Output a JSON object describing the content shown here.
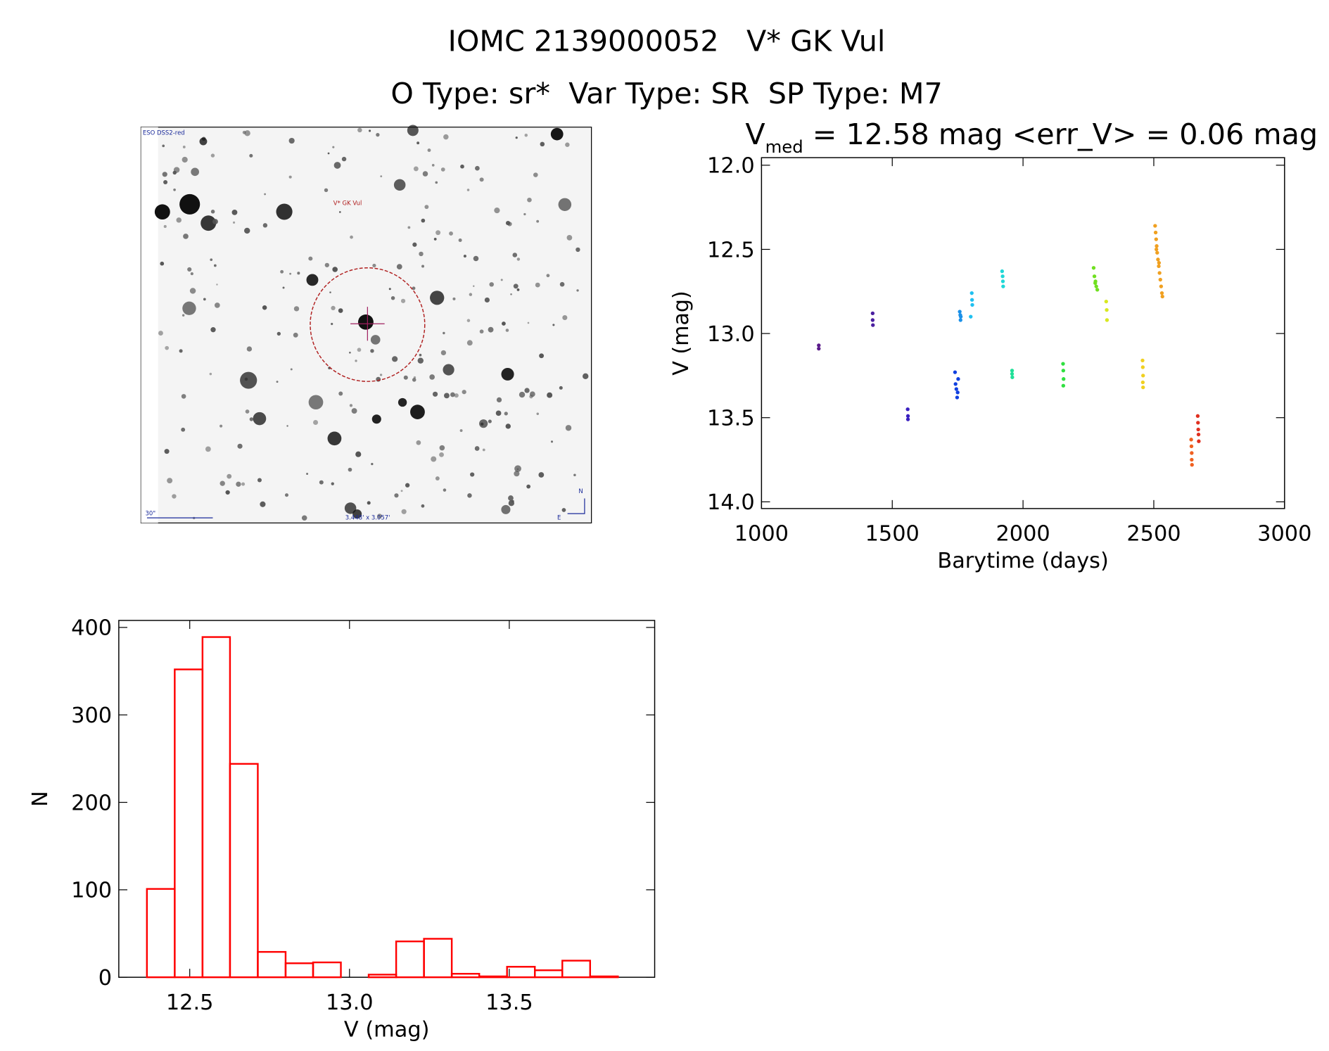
{
  "title": "IOMC 2139000052   V* GK Vul",
  "subtitle": "O Type: sr*  Var Type: SR  SP Type: M7",
  "image": {
    "survey": "ESO DSS2-red",
    "target": "V* GK Vul",
    "scale": "30\"",
    "field": "3.448' x 3.057'",
    "north": "N",
    "east": "E"
  },
  "chart_data": [
    {
      "type": "scatter",
      "title": "V",
      "title_sub": "med",
      "title_rest": " = 12.58 mag <err_V> = 0.06 mag",
      "x_label": "Barytime (days)",
      "y_label": "V (mag)",
      "xlim": [
        1000,
        3000
      ],
      "xticks": [
        1000,
        1500,
        2000,
        2500,
        3000
      ],
      "ylim": [
        11.955,
        14.04
      ],
      "y_inverted": true,
      "yticks": [
        {
          "value": 12.0,
          "label": "12.0"
        },
        12.5,
        {
          "value": 13.0,
          "label": "13.0"
        },
        13.5,
        {
          "value": 14.0,
          "label": "14.0"
        }
      ],
      "series": [
        {
          "color": "#5a1a8a",
          "x": [
            1219,
            1219
          ],
          "values": [
            13.07,
            13.09
          ]
        },
        {
          "color": "#4b1fa0",
          "x": [
            1425,
            1425,
            1426
          ],
          "values": [
            12.88,
            12.92,
            12.95
          ]
        },
        {
          "color": "#3a20c0",
          "x": [
            1559,
            1560,
            1560
          ],
          "values": [
            13.45,
            13.49,
            13.51
          ]
        },
        {
          "color": "#1040e0",
          "x": [
            1740,
            1742,
            1745,
            1748,
            1752,
            1750
          ],
          "values": [
            13.23,
            13.3,
            13.33,
            13.38,
            13.27,
            13.35
          ]
        },
        {
          "color": "#1a90e8",
          "x": [
            1758,
            1760,
            1762,
            1761
          ],
          "values": [
            12.87,
            12.89,
            12.9,
            12.92
          ]
        },
        {
          "color": "#20c0f0",
          "x": [
            1800,
            1804,
            1805,
            1806
          ],
          "values": [
            12.9,
            12.76,
            12.8,
            12.83
          ]
        },
        {
          "color": "#20d8d8",
          "x": [
            1920,
            1922,
            1923,
            1924
          ],
          "values": [
            12.63,
            12.66,
            12.69,
            12.72
          ]
        },
        {
          "color": "#20e098",
          "x": [
            1958,
            1958,
            1959
          ],
          "values": [
            13.22,
            13.24,
            13.26
          ]
        },
        {
          "color": "#30e040",
          "x": [
            2153,
            2154,
            2155,
            2154
          ],
          "values": [
            13.18,
            13.22,
            13.27,
            13.31
          ]
        },
        {
          "color": "#70e020",
          "x": [
            2270,
            2273,
            2277,
            2280,
            2284,
            2276
          ],
          "values": [
            12.61,
            12.66,
            12.69,
            12.72,
            12.74,
            12.7
          ]
        },
        {
          "color": "#d8e820",
          "x": [
            2318,
            2320,
            2321
          ],
          "values": [
            12.81,
            12.86,
            12.92
          ]
        },
        {
          "color": "#f0d020",
          "x": [
            2457,
            2458,
            2459,
            2458,
            2459
          ],
          "values": [
            13.16,
            13.2,
            13.25,
            13.29,
            13.32
          ]
        },
        {
          "color": "#f0a020",
          "x": [
            2505,
            2507,
            2509,
            2511,
            2513,
            2516,
            2519,
            2522,
            2525,
            2528,
            2531,
            2533,
            2510,
            2520
          ],
          "values": [
            12.36,
            12.4,
            12.44,
            12.48,
            12.52,
            12.56,
            12.6,
            12.64,
            12.68,
            12.72,
            12.76,
            12.78,
            12.5,
            12.58
          ]
        },
        {
          "color": "#f06020",
          "x": [
            2643,
            2644,
            2645,
            2645,
            2646
          ],
          "values": [
            13.63,
            13.67,
            13.71,
            13.75,
            13.78
          ]
        },
        {
          "color": "#e03020",
          "x": [
            2668,
            2669,
            2670,
            2671,
            2672
          ],
          "values": [
            13.49,
            13.53,
            13.57,
            13.6,
            13.64
          ]
        }
      ]
    },
    {
      "type": "histogram",
      "color": "#ff0000",
      "x_label": "V (mag)",
      "y_label": "N",
      "bins": [
        12.366,
        12.453,
        12.54,
        12.626,
        12.713,
        12.8,
        12.886,
        12.973,
        13.06,
        13.146,
        13.233,
        13.32,
        13.406,
        13.493,
        13.58,
        13.666,
        13.753,
        13.84
      ],
      "values": [
        101,
        352,
        389,
        244,
        29,
        16,
        17,
        0,
        3,
        41,
        44,
        4,
        1,
        12,
        8,
        19,
        1
      ],
      "xlim": [
        12.278,
        13.955
      ],
      "xticks": [
        12.5,
        {
          "value": 13.0,
          "label": "13.0"
        },
        13.5
      ],
      "ylim": [
        0,
        408
      ],
      "yticks": [
        0,
        100,
        200,
        300,
        400
      ]
    }
  ]
}
